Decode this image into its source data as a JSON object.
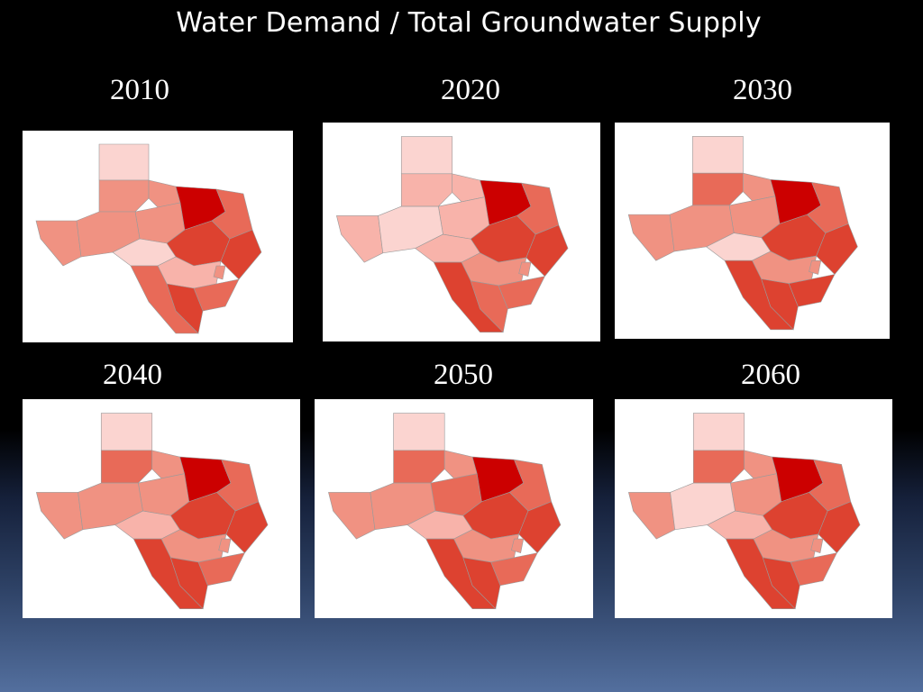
{
  "slide": {
    "title": "Water Demand / Total Groundwater Supply"
  },
  "palette": {
    "lightest": "#fbd4d0",
    "light": "#f8b3aa",
    "mid": "#f09282",
    "midDark": "#e86a58",
    "dark": "#dd4230",
    "darkest": "#cc0000"
  },
  "panels": [
    {
      "year": "2010"
    },
    {
      "year": "2020"
    },
    {
      "year": "2030"
    },
    {
      "year": "2040"
    },
    {
      "year": "2050"
    },
    {
      "year": "2060"
    }
  ]
}
